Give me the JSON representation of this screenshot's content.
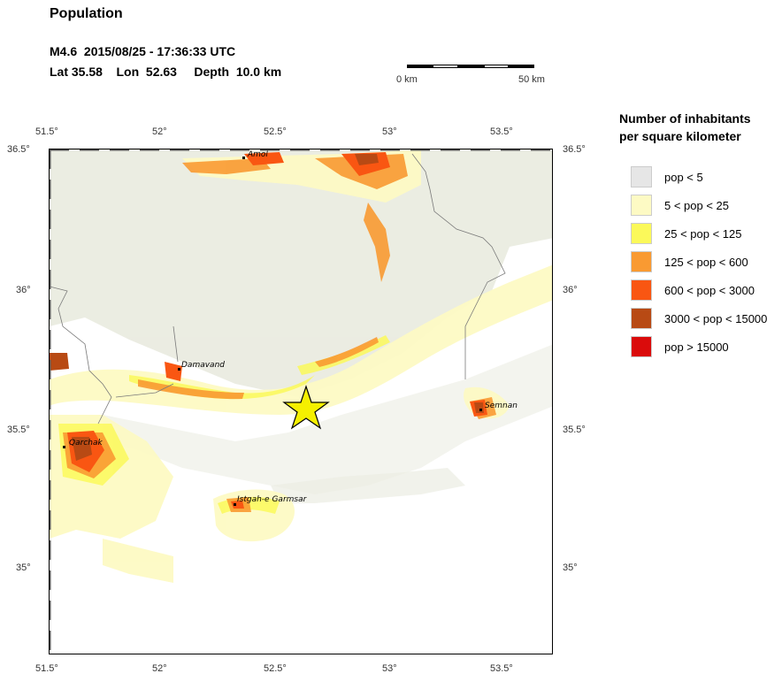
{
  "header": {
    "title": "Population",
    "event": "M4.6  2015/08/25 - 17:36:33 UTC",
    "location": "Lat 35.58    Lon  52.63     Depth  10.0 km"
  },
  "scale_bar": {
    "start_label": "0 km",
    "end_label": "50 km"
  },
  "axes": {
    "lon_labels": [
      "51.5°",
      "52°",
      "52.5°",
      "53°",
      "53.5°"
    ],
    "lat_labels": [
      "36.5°",
      "36°",
      "35.5°",
      "35°"
    ]
  },
  "legend": {
    "title_line1": "Number of inhabitants",
    "title_line2": "per square kilometer",
    "items": [
      {
        "label": "pop < 5",
        "color": "#e6e6e6"
      },
      {
        "label": "5 < pop < 25",
        "color": "#fdfac4"
      },
      {
        "label": "25 < pop < 125",
        "color": "#fbf95a"
      },
      {
        "label": "125 < pop < 600",
        "color": "#f99a32"
      },
      {
        "label": "600 < pop < 3000",
        "color": "#f95612"
      },
      {
        "label": "3000 < pop < 15000",
        "color": "#b84a14"
      },
      {
        "label": "pop > 15000",
        "color": "#da0b0b"
      }
    ]
  },
  "map": {
    "cities": [
      {
        "name": "Amol"
      },
      {
        "name": "Damavand"
      },
      {
        "name": "Semnan"
      },
      {
        "name": "Qarchak"
      },
      {
        "name": "Istgah-e Garmsar"
      }
    ],
    "epicenter_icon": "star-icon",
    "epicenter_color": "#f5f000"
  }
}
